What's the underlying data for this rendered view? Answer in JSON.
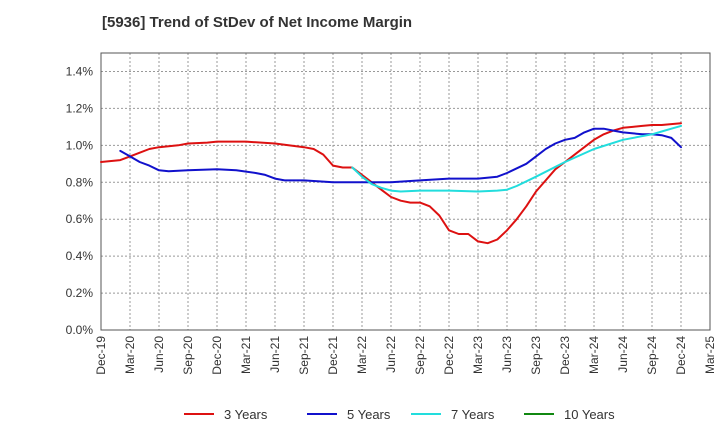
{
  "chart_data": {
    "type": "line",
    "title": "[5936]  Trend of StDev of Net Income Margin",
    "xlabel": "",
    "ylabel": "",
    "x_ticks": [
      "Dec-19",
      "Mar-20",
      "Jun-20",
      "Sep-20",
      "Dec-20",
      "Mar-21",
      "Jun-21",
      "Sep-21",
      "Dec-21",
      "Mar-22",
      "Jun-22",
      "Sep-22",
      "Dec-22",
      "Mar-23",
      "Jun-23",
      "Sep-23",
      "Dec-23",
      "Mar-24",
      "Jun-24",
      "Sep-24",
      "Dec-24",
      "Mar-25"
    ],
    "y_ticks": [
      "0.0%",
      "0.2%",
      "0.4%",
      "0.6%",
      "0.8%",
      "1.0%",
      "1.2%",
      "1.4%"
    ],
    "ylim": [
      0,
      1.5
    ],
    "grid": true,
    "legend_position": "bottom",
    "series": [
      {
        "name": "3 Years",
        "color": "#dd1111",
        "points": [
          [
            "Dec-19",
            0.91
          ],
          [
            "Feb-20",
            0.92
          ],
          [
            "Mar-20",
            0.94
          ],
          [
            "Apr-20",
            0.96
          ],
          [
            "May-20",
            0.98
          ],
          [
            "Jun-20",
            0.99
          ],
          [
            "Aug-20",
            1.0
          ],
          [
            "Sep-20",
            1.01
          ],
          [
            "Nov-20",
            1.015
          ],
          [
            "Dec-20",
            1.02
          ],
          [
            "Mar-21",
            1.02
          ],
          [
            "Jun-21",
            1.01
          ],
          [
            "Sep-21",
            0.99
          ],
          [
            "Oct-21",
            0.98
          ],
          [
            "Nov-21",
            0.95
          ],
          [
            "Dec-21",
            0.89
          ],
          [
            "Jan-22",
            0.88
          ],
          [
            "Feb-22",
            0.88
          ],
          [
            "Mar-22",
            0.84
          ],
          [
            "Apr-22",
            0.8
          ],
          [
            "May-22",
            0.76
          ],
          [
            "Jun-22",
            0.72
          ],
          [
            "Jul-22",
            0.7
          ],
          [
            "Aug-22",
            0.69
          ],
          [
            "Sep-22",
            0.69
          ],
          [
            "Oct-22",
            0.67
          ],
          [
            "Nov-22",
            0.62
          ],
          [
            "Dec-22",
            0.54
          ],
          [
            "Jan-23",
            0.52
          ],
          [
            "Feb-23",
            0.52
          ],
          [
            "Mar-23",
            0.48
          ],
          [
            "Apr-23",
            0.47
          ],
          [
            "May-23",
            0.49
          ],
          [
            "Jun-23",
            0.54
          ],
          [
            "Jul-23",
            0.6
          ],
          [
            "Aug-23",
            0.67
          ],
          [
            "Sep-23",
            0.75
          ],
          [
            "Oct-23",
            0.81
          ],
          [
            "Nov-23",
            0.87
          ],
          [
            "Dec-23",
            0.91
          ],
          [
            "Jan-24",
            0.95
          ],
          [
            "Feb-24",
            0.99
          ],
          [
            "Mar-24",
            1.03
          ],
          [
            "Apr-24",
            1.06
          ],
          [
            "May-24",
            1.08
          ],
          [
            "Jun-24",
            1.095
          ],
          [
            "Jul-24",
            1.1
          ],
          [
            "Aug-24",
            1.105
          ],
          [
            "Sep-24",
            1.11
          ],
          [
            "Oct-24",
            1.11
          ],
          [
            "Nov-24",
            1.115
          ],
          [
            "Dec-24",
            1.12
          ]
        ]
      },
      {
        "name": "5 Years",
        "color": "#1111cc",
        "points": [
          [
            "Feb-20",
            0.97
          ],
          [
            "Mar-20",
            0.94
          ],
          [
            "Apr-20",
            0.91
          ],
          [
            "May-20",
            0.89
          ],
          [
            "Jun-20",
            0.865
          ],
          [
            "Jul-20",
            0.86
          ],
          [
            "Sep-20",
            0.865
          ],
          [
            "Dec-20",
            0.87
          ],
          [
            "Feb-21",
            0.865
          ],
          [
            "Apr-21",
            0.85
          ],
          [
            "May-21",
            0.84
          ],
          [
            "Jun-21",
            0.82
          ],
          [
            "Jul-21",
            0.81
          ],
          [
            "Sep-21",
            0.81
          ],
          [
            "Dec-21",
            0.8
          ],
          [
            "Mar-22",
            0.8
          ],
          [
            "Jun-22",
            0.8
          ],
          [
            "Sep-22",
            0.81
          ],
          [
            "Dec-22",
            0.82
          ],
          [
            "Mar-23",
            0.82
          ],
          [
            "May-23",
            0.83
          ],
          [
            "Jun-23",
            0.85
          ],
          [
            "Aug-23",
            0.9
          ],
          [
            "Sep-23",
            0.94
          ],
          [
            "Oct-23",
            0.98
          ],
          [
            "Nov-23",
            1.01
          ],
          [
            "Dec-23",
            1.03
          ],
          [
            "Jan-24",
            1.04
          ],
          [
            "Feb-24",
            1.07
          ],
          [
            "Mar-24",
            1.09
          ],
          [
            "Apr-24",
            1.09
          ],
          [
            "May-24",
            1.08
          ],
          [
            "Jun-24",
            1.07
          ],
          [
            "Aug-24",
            1.06
          ],
          [
            "Sep-24",
            1.06
          ],
          [
            "Oct-24",
            1.055
          ],
          [
            "Nov-24",
            1.04
          ],
          [
            "Dec-24",
            0.99
          ]
        ]
      },
      {
        "name": "7 Years",
        "color": "#22dddd",
        "points": [
          [
            "Feb-22",
            0.88
          ],
          [
            "Mar-22",
            0.83
          ],
          [
            "Apr-22",
            0.79
          ],
          [
            "May-22",
            0.77
          ],
          [
            "Jun-22",
            0.755
          ],
          [
            "Jul-22",
            0.75
          ],
          [
            "Sep-22",
            0.755
          ],
          [
            "Dec-22",
            0.755
          ],
          [
            "Mar-23",
            0.75
          ],
          [
            "May-23",
            0.755
          ],
          [
            "Jun-23",
            0.76
          ],
          [
            "Jul-23",
            0.78
          ],
          [
            "Sep-23",
            0.83
          ],
          [
            "Dec-23",
            0.91
          ],
          [
            "Mar-24",
            0.98
          ],
          [
            "Jun-24",
            1.03
          ],
          [
            "Sep-24",
            1.06
          ],
          [
            "Oct-24",
            1.075
          ],
          [
            "Nov-24",
            1.09
          ],
          [
            "Dec-24",
            1.105
          ]
        ]
      },
      {
        "name": "10 Years",
        "color": "#118811",
        "points": []
      }
    ]
  }
}
